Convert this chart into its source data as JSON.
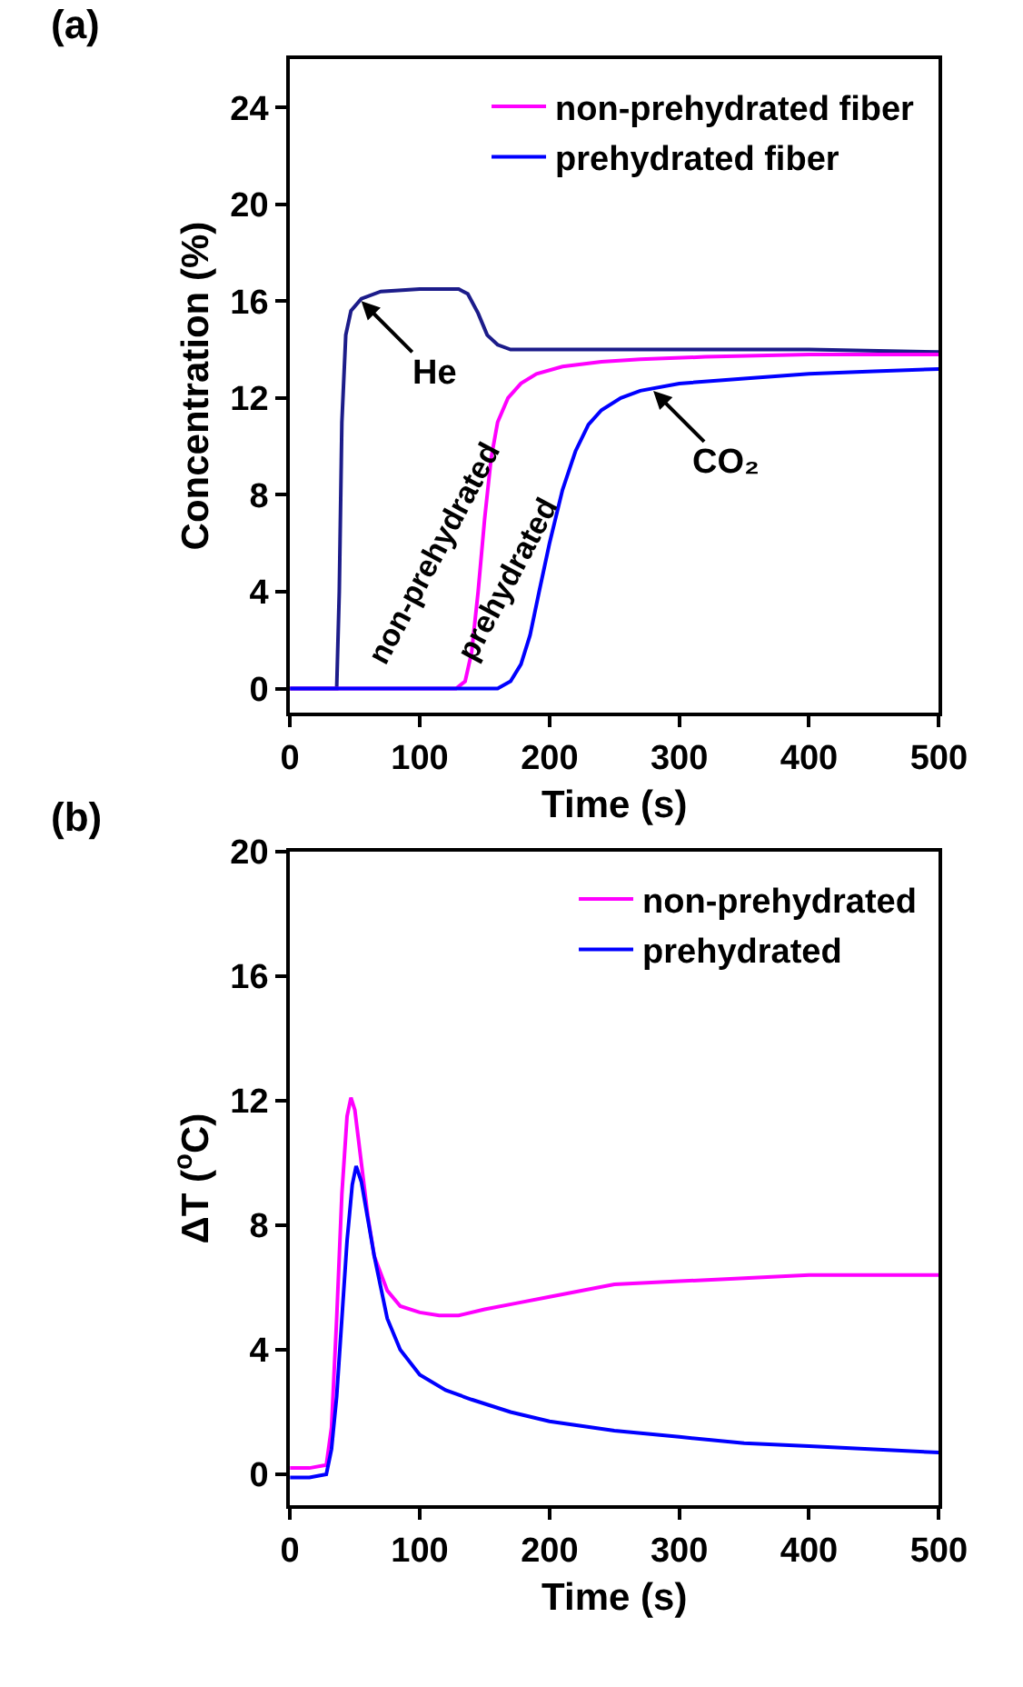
{
  "chart_data": [
    {
      "type": "line",
      "title": "(a)",
      "xlabel": "Time (s)",
      "ylabel": "Concentration (%)",
      "xlim": [
        0,
        500
      ],
      "xticks": [
        0,
        100,
        200,
        300,
        400,
        500
      ],
      "ylim": [
        -1,
        26
      ],
      "yticks": [
        0,
        4,
        8,
        12,
        16,
        20,
        24
      ],
      "grid": false,
      "legend": "top right",
      "series": [
        {
          "color": "#1c1c8a",
          "x": [
            0,
            30,
            36,
            38,
            40,
            43,
            47,
            55,
            70,
            100,
            130,
            137,
            145,
            152,
            160,
            170,
            200,
            300,
            400,
            500
          ],
          "values": [
            0,
            0,
            0,
            4,
            11,
            14.6,
            15.6,
            16.1,
            16.4,
            16.5,
            16.5,
            16.3,
            15.5,
            14.6,
            14.2,
            14,
            14,
            14,
            14,
            13.9
          ]
        },
        {
          "name": "non-prehydrated fiber",
          "color": "#ff00ff",
          "x": [
            0,
            128,
            135,
            140,
            145,
            150,
            155,
            160,
            168,
            178,
            190,
            210,
            240,
            270,
            320,
            400,
            500
          ],
          "values": [
            0,
            0,
            0.3,
            1.5,
            4,
            7,
            9.5,
            11,
            12,
            12.6,
            13,
            13.3,
            13.5,
            13.6,
            13.7,
            13.8,
            13.8
          ]
        },
        {
          "name": "prehydrated fiber",
          "color": "#0000ff",
          "x": [
            0,
            160,
            170,
            178,
            185,
            192,
            200,
            210,
            220,
            230,
            240,
            255,
            270,
            300,
            350,
            400,
            450,
            500
          ],
          "values": [
            0,
            0,
            0.3,
            1,
            2.2,
            4,
            6,
            8.2,
            9.8,
            10.9,
            11.5,
            12,
            12.3,
            12.6,
            12.8,
            13,
            13.1,
            13.2
          ]
        }
      ],
      "annotations": [
        {
          "text": "He",
          "x": 55,
          "y": 16
        },
        {
          "text": "CO₂",
          "x": 280,
          "y": 12.3
        },
        "non-prehydrated",
        "prehydrated"
      ]
    },
    {
      "type": "line",
      "title": "(b)",
      "xlabel": "Time (s)",
      "ylabel": "ΔT ($^{o}$C)",
      "xlim": [
        0,
        500
      ],
      "xticks": [
        0,
        100,
        200,
        300,
        400,
        500
      ],
      "ylim": [
        -1,
        20
      ],
      "yticks": [
        0,
        4,
        8,
        12,
        16,
        20
      ],
      "grid": false,
      "legend": "top right",
      "series": [
        {
          "name": "non-prehydrated",
          "color": "#ff00ff",
          "x": [
            0,
            15,
            28,
            32,
            36,
            40,
            44,
            47,
            50,
            55,
            60,
            65,
            75,
            85,
            100,
            115,
            130,
            150,
            175,
            200,
            250,
            300,
            350,
            400,
            450,
            500
          ],
          "values": [
            0.2,
            0.2,
            0.3,
            1.5,
            5,
            9,
            11.5,
            12.1,
            11.7,
            10,
            8.3,
            7,
            5.9,
            5.4,
            5.2,
            5.1,
            5.1,
            5.3,
            5.5,
            5.7,
            6.1,
            6.2,
            6.3,
            6.4,
            6.4,
            6.4
          ]
        },
        {
          "name": "prehydrated",
          "color": "#0000ff",
          "x": [
            0,
            15,
            28,
            32,
            36,
            40,
            44,
            48,
            51,
            55,
            60,
            65,
            75,
            85,
            100,
            120,
            140,
            170,
            200,
            250,
            300,
            350,
            400,
            450,
            500
          ],
          "values": [
            -0.1,
            -0.1,
            0,
            0.8,
            2.5,
            5,
            7.5,
            9.3,
            9.9,
            9.4,
            8.2,
            7,
            5,
            4,
            3.2,
            2.7,
            2.4,
            2,
            1.7,
            1.4,
            1.2,
            1,
            0.9,
            0.8,
            0.7
          ]
        }
      ]
    }
  ]
}
